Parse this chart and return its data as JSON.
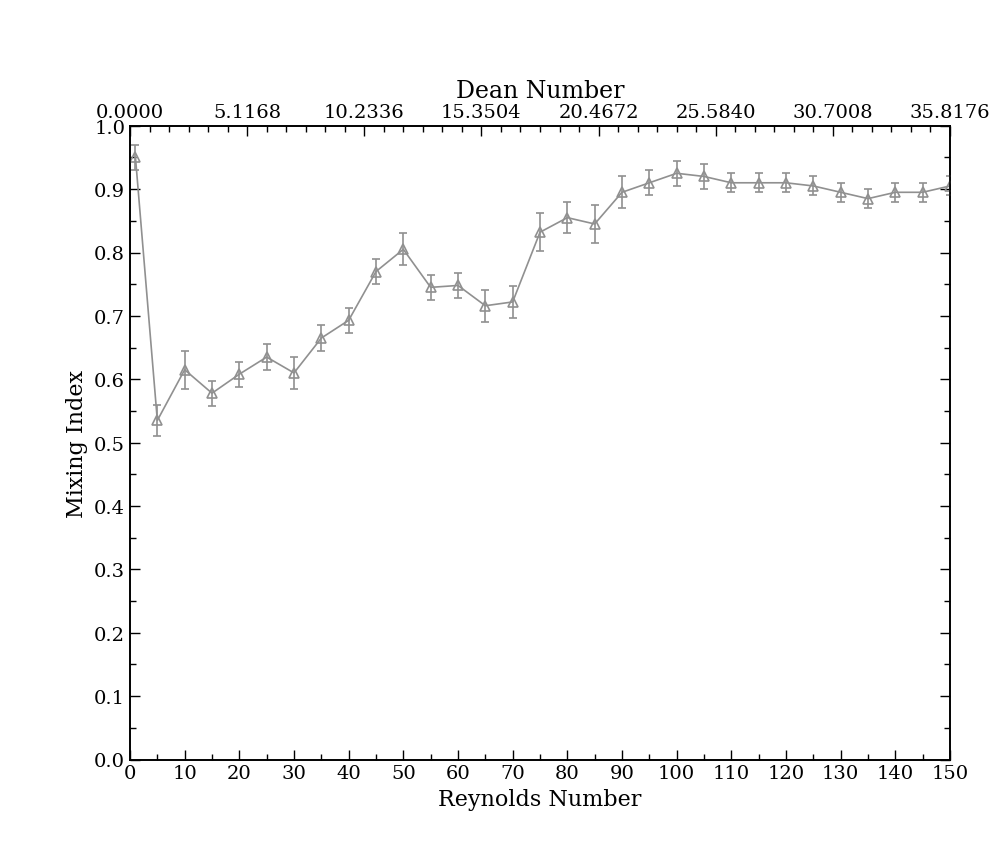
{
  "title_top": "Dean Number",
  "xlabel": "Reynolds Number",
  "ylabel": "Mixing Index",
  "xlim": [
    0,
    150
  ],
  "ylim": [
    0.0,
    1.0
  ],
  "xticks": [
    0,
    10,
    20,
    30,
    40,
    50,
    60,
    70,
    80,
    90,
    100,
    110,
    120,
    130,
    140,
    150
  ],
  "yticks": [
    0.0,
    0.1,
    0.2,
    0.3,
    0.4,
    0.5,
    0.6,
    0.7,
    0.8,
    0.9,
    1.0
  ],
  "dean_ticks": [
    0.0,
    5.1168,
    10.2336,
    15.3504,
    20.4672,
    25.584,
    30.7008,
    35.8176
  ],
  "line_color": "#909090",
  "marker_color": "#909090",
  "x": [
    1,
    5,
    10,
    15,
    20,
    25,
    30,
    35,
    40,
    45,
    50,
    55,
    60,
    65,
    70,
    75,
    80,
    85,
    90,
    95,
    100,
    105,
    110,
    115,
    120,
    125,
    130,
    135,
    140,
    145,
    150
  ],
  "y": [
    0.95,
    0.535,
    0.615,
    0.578,
    0.608,
    0.635,
    0.61,
    0.665,
    0.693,
    0.77,
    0.805,
    0.745,
    0.748,
    0.716,
    0.722,
    0.832,
    0.855,
    0.845,
    0.895,
    0.91,
    0.925,
    0.92,
    0.91,
    0.91,
    0.91,
    0.905,
    0.895,
    0.885,
    0.895,
    0.895,
    0.905
  ],
  "yerr": [
    0.02,
    0.025,
    0.03,
    0.02,
    0.02,
    0.02,
    0.025,
    0.02,
    0.02,
    0.02,
    0.025,
    0.02,
    0.02,
    0.025,
    0.025,
    0.03,
    0.025,
    0.03,
    0.025,
    0.02,
    0.02,
    0.02,
    0.015,
    0.015,
    0.015,
    0.015,
    0.015,
    0.015,
    0.015,
    0.015,
    0.015
  ],
  "background_color": "#ffffff",
  "font_color": "#000000",
  "title_fontsize": 17,
  "label_fontsize": 16,
  "tick_fontsize": 14
}
